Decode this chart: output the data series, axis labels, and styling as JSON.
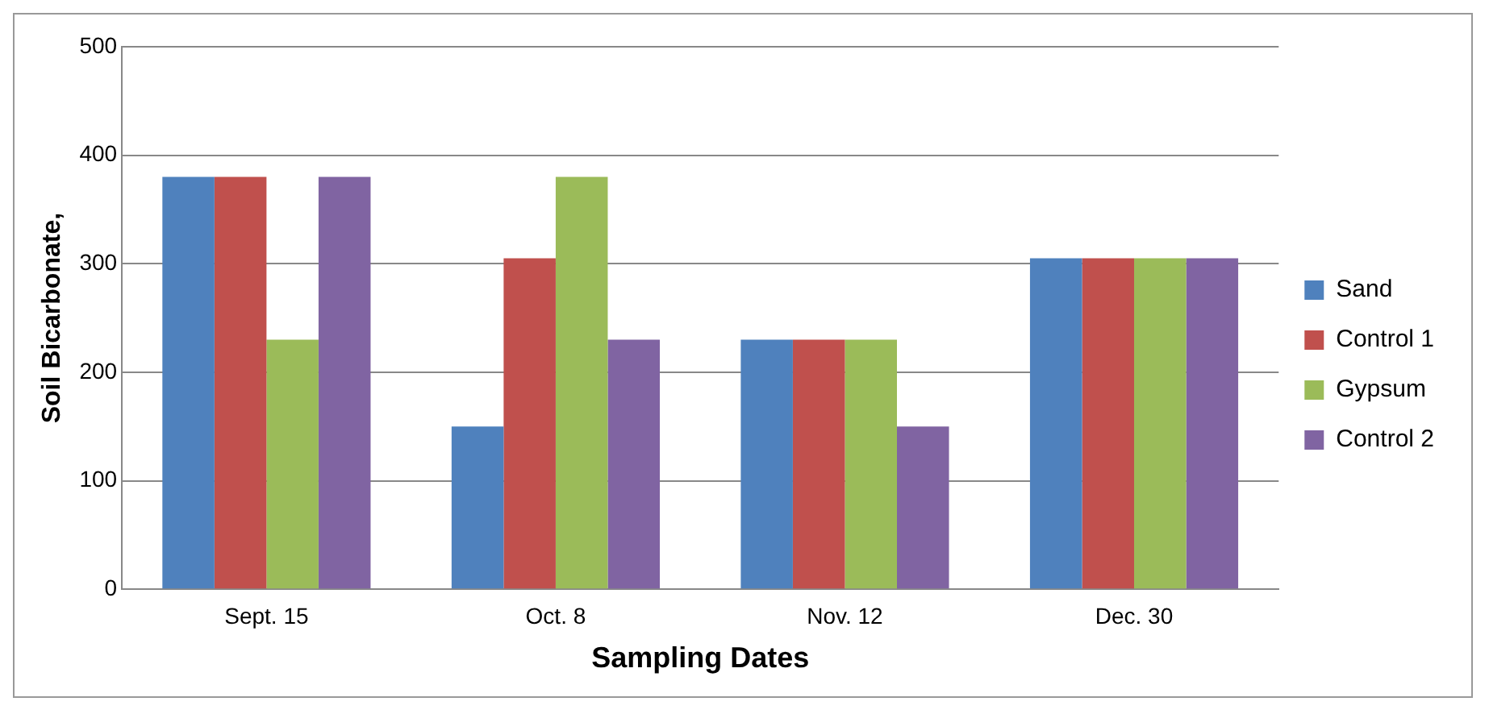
{
  "chart_data": {
    "type": "bar",
    "xlabel": "Sampling Dates",
    "ylabel": "Soil Bicarbonate,",
    "categories": [
      "Sept. 15",
      "Oct. 8",
      "Nov. 12",
      "Dec. 30"
    ],
    "series": [
      {
        "name": "Sand",
        "color": "#4f81bd",
        "values": [
          380,
          150,
          230,
          305
        ]
      },
      {
        "name": "Control 1",
        "color": "#c0504d",
        "values": [
          380,
          305,
          230,
          305
        ]
      },
      {
        "name": "Gypsum",
        "color": "#9bbb59",
        "values": [
          230,
          380,
          230,
          305
        ]
      },
      {
        "name": "Control 2",
        "color": "#8064a2",
        "values": [
          380,
          230,
          150,
          305
        ]
      }
    ],
    "ylim": [
      0,
      500
    ],
    "yticks": [
      0,
      100,
      200,
      300,
      400,
      500
    ],
    "grid": "y",
    "legend": "right"
  }
}
